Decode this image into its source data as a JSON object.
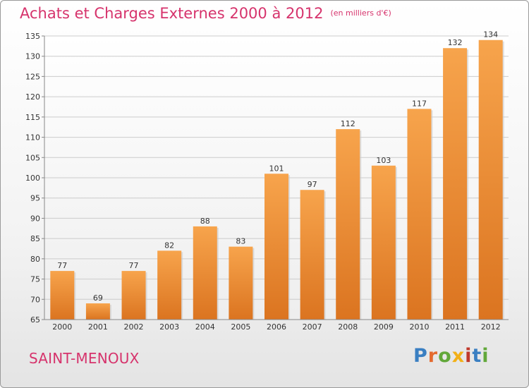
{
  "title": "Achats et Charges Externes 2000 à 2012",
  "unit_note": "(en milliers d'€)",
  "town": "SAINT-MENOUX",
  "logo_text": "Proxiti",
  "colors": {
    "title": "#d6336c",
    "bar_light": "#f7a44c",
    "bar_dark": "#db7420",
    "logo": [
      "#3a7fc2",
      "#e46a2f",
      "#62a83a",
      "#f2b017",
      "#c0392b",
      "#3a7fc2",
      "#62a83a"
    ]
  },
  "chart_data": {
    "type": "bar",
    "title": "Achats et Charges Externes 2000 à 2012",
    "subtitle": "(en milliers d'€)",
    "categories": [
      "2000",
      "2001",
      "2002",
      "2003",
      "2004",
      "2005",
      "2006",
      "2007",
      "2008",
      "2009",
      "2010",
      "2011",
      "2012"
    ],
    "values": [
      77,
      69,
      77,
      82,
      88,
      83,
      101,
      97,
      112,
      103,
      117,
      132,
      134
    ],
    "ylim": [
      65,
      135
    ],
    "yticks": [
      65,
      70,
      75,
      80,
      85,
      90,
      95,
      100,
      105,
      110,
      115,
      120,
      125,
      130,
      135
    ],
    "grid": true,
    "data_labels": true
  }
}
